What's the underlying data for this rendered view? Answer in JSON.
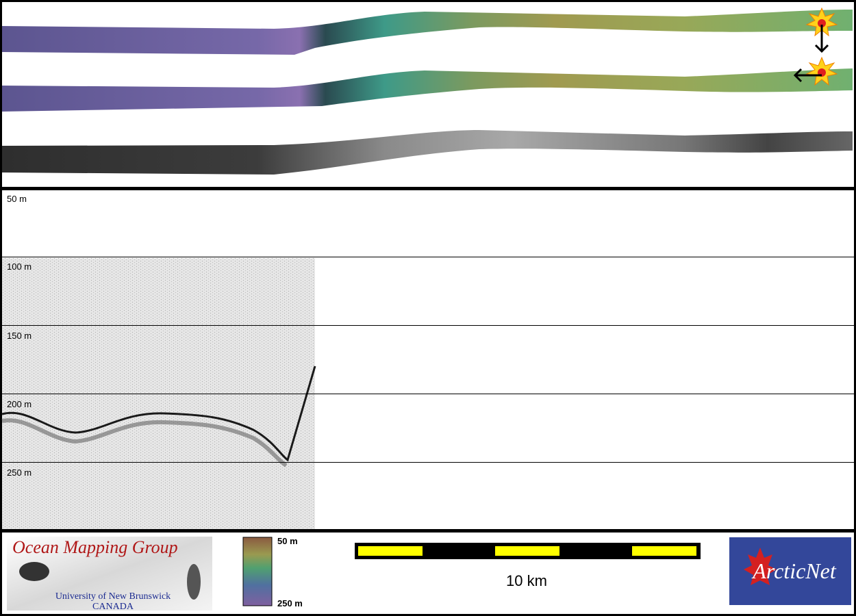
{
  "profile": {
    "depth_labels": [
      "50 m",
      "100 m",
      "150 m",
      "200 m",
      "250 m"
    ]
  },
  "footer": {
    "logo": {
      "title": "Ocean Mapping Group",
      "subtitle": "University of New Brunswick",
      "country": "CANADA"
    },
    "colorbar": {
      "top": "50 m",
      "bottom": "250 m"
    },
    "scale_bar": {
      "label": "10 km"
    },
    "partner_logo": {
      "name": "ArcticNet"
    }
  }
}
